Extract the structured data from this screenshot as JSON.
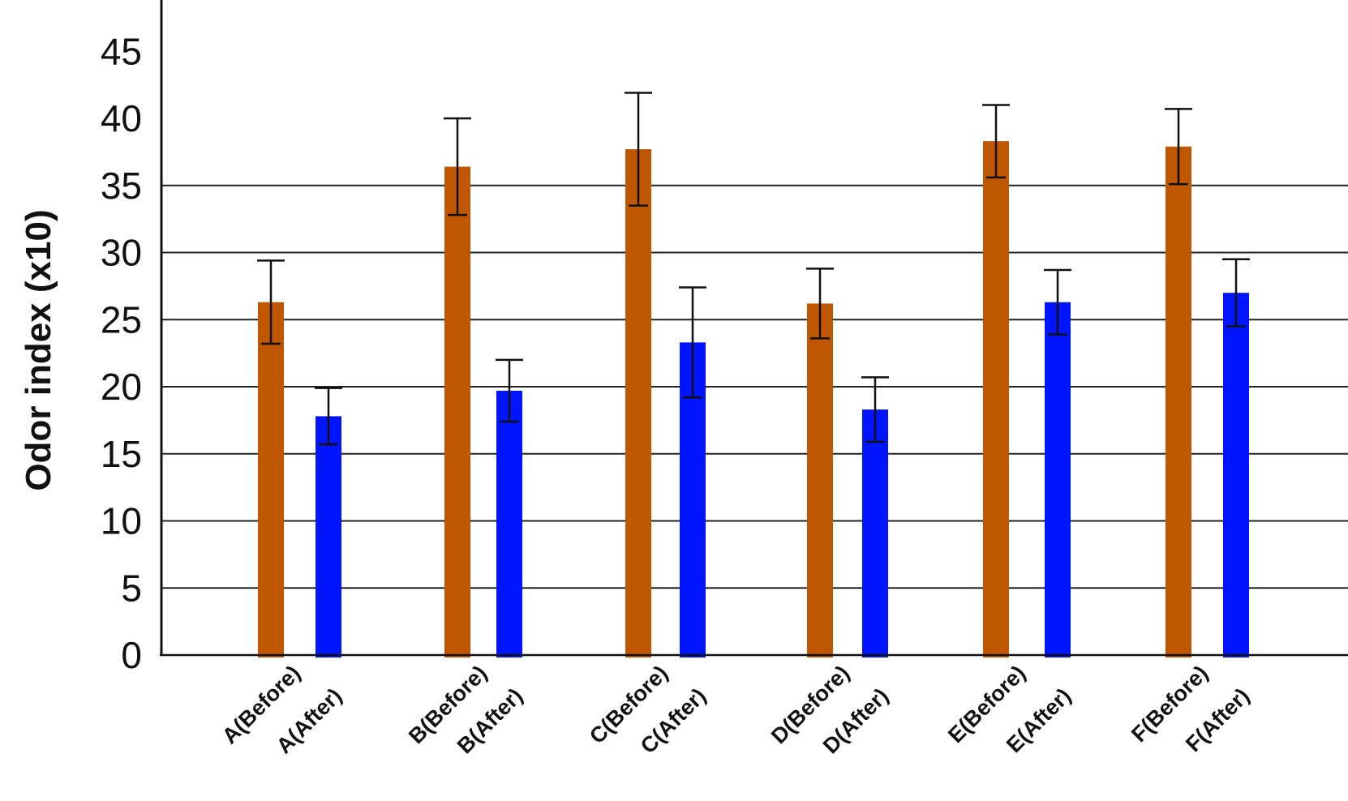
{
  "chart_data": {
    "type": "bar",
    "ylabel": "Odor index (x10)",
    "ylim": [
      0,
      48
    ],
    "yticks": [
      0,
      5,
      10,
      15,
      20,
      25,
      30,
      35,
      40,
      45
    ],
    "gridlines": [
      5,
      10,
      15,
      20,
      25,
      30,
      35
    ],
    "grid": true,
    "colors": {
      "before": "#bf5700",
      "after": "#0015ff",
      "error_bar": "#111111",
      "grid": "#222222"
    },
    "groups": [
      {
        "before_label": "A(Before)",
        "after_label": "A(After)",
        "before": 26.3,
        "before_err": 3.1,
        "after": 17.8,
        "after_err": 2.1
      },
      {
        "before_label": "B(Before)",
        "after_label": "B(After)",
        "before": 36.4,
        "before_err": 3.6,
        "after": 19.7,
        "after_err": 2.3
      },
      {
        "before_label": "C(Before)",
        "after_label": "C(After)",
        "before": 37.7,
        "before_err": 4.2,
        "after": 23.3,
        "after_err": 4.1
      },
      {
        "before_label": "D(Before)",
        "after_label": "D(After)",
        "before": 26.2,
        "before_err": 2.6,
        "after": 18.3,
        "after_err": 2.4
      },
      {
        "before_label": "E(Before)",
        "after_label": "E(After)",
        "before": 38.3,
        "before_err": 2.7,
        "after": 26.3,
        "after_err": 2.4
      },
      {
        "before_label": "F(Before)",
        "after_label": "F(After)",
        "before": 37.9,
        "before_err": 2.8,
        "after": 27.0,
        "after_err": 2.5
      }
    ]
  }
}
